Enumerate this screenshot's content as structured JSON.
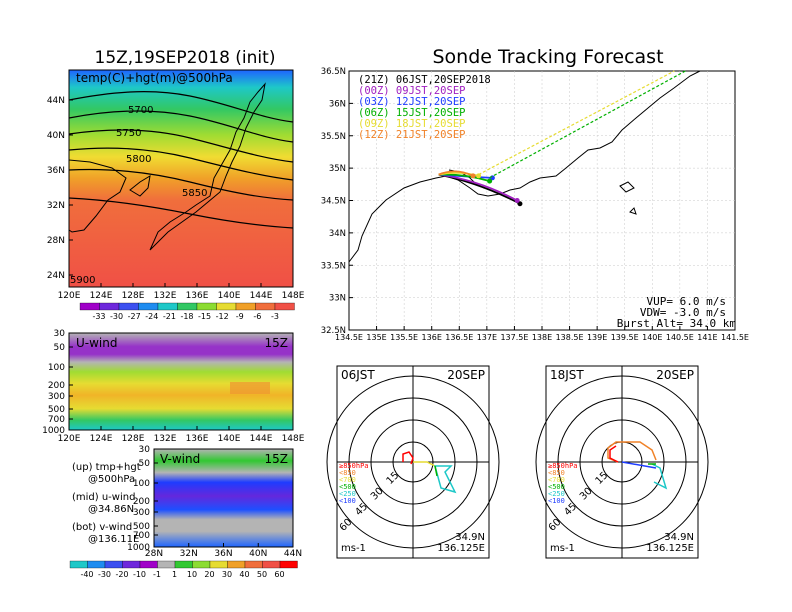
{
  "titles": {
    "left": "15Z,19SEP2018 (init)",
    "right": "Sonde Tracking Forecast"
  },
  "map500": {
    "label": "temp(C)+hgt(m)@500hPa",
    "lat_ticks": [
      "44N",
      "40N",
      "36N",
      "32N",
      "28N",
      "24N"
    ],
    "lon_ticks": [
      "120E",
      "124E",
      "128E",
      "132E",
      "136E",
      "140E",
      "144E",
      "148E"
    ],
    "contour_labels": [
      "5700",
      "5750",
      "5800",
      "5850",
      "5900"
    ],
    "colorbar": [
      "-33",
      "-30",
      "-27",
      "-24",
      "-21",
      "-18",
      "-15",
      "-12",
      "-9",
      "-6",
      "-3"
    ]
  },
  "uwind": {
    "label": "U-wind",
    "time": "15Z",
    "p_ticks": [
      "30",
      "50",
      "100",
      "200",
      "300",
      "500",
      "700",
      "1000"
    ],
    "lon_ticks": [
      "120E",
      "124E",
      "128E",
      "132E",
      "136E",
      "140E",
      "144E",
      "148E"
    ]
  },
  "vwind": {
    "label": "V-wind",
    "time": "15Z",
    "p_ticks": [
      "30",
      "50",
      "100",
      "200",
      "300",
      "500",
      "700",
      "1000"
    ],
    "lat_ticks": [
      "28N",
      "32N",
      "36N",
      "40N",
      "44N"
    ],
    "colorbar": [
      "-40",
      "-30",
      "-20",
      "-10",
      "-1",
      "1",
      "10",
      "20",
      "30",
      "40",
      "50",
      "60"
    ]
  },
  "notes": {
    "up1": "(up) tmp+hgt",
    "up2": "@500hPa",
    "mid1": "(mid) u-wind",
    "mid2": "@34.86N",
    "bot1": "(bot) v-wind",
    "bot2": "@136.11E"
  },
  "track": {
    "legend": [
      {
        "text": "(21Z) 06JST,20SEP2018",
        "color": "#000000"
      },
      {
        "text": "(00Z) 09JST,20SEP",
        "color": "#a020c0"
      },
      {
        "text": "(03Z) 12JST,20SEP",
        "color": "#1e3cff"
      },
      {
        "text": "(06Z) 15JST,20SEP",
        "color": "#00b000"
      },
      {
        "text": "(09Z) 18JST,20SEP",
        "color": "#e6dc32"
      },
      {
        "text": "(12Z) 21JST,20SEP",
        "color": "#f08228"
      }
    ],
    "lat_ticks": [
      "36.5N",
      "36N",
      "35.5N",
      "35N",
      "34.5N",
      "34N",
      "33.5N",
      "33N",
      "32.5N"
    ],
    "lon_ticks": [
      "134.5E",
      "135E",
      "135.5E",
      "136E",
      "136.5E",
      "137E",
      "137.5E",
      "138E",
      "138.5E",
      "139E",
      "139.5E",
      "140E",
      "140.5E",
      "141E",
      "141.5E"
    ],
    "vup": "VUP=  6.0 m/s",
    "vdw": "VDW= -3.0 m/s",
    "burst": "Burst Alt= 34.0 km"
  },
  "hodo1": {
    "time": "06JST",
    "date": "20SEP",
    "rings": [
      "15",
      "30",
      "45",
      "60"
    ],
    "levels": [
      {
        "text": "≥850hPa",
        "color": "#ff0000"
      },
      {
        "text": "<850",
        "color": "#f08228"
      },
      {
        "text": "<700",
        "color": "#e6dc32"
      },
      {
        "text": "<500",
        "color": "#00b000"
      },
      {
        "text": "<250",
        "color": "#1ec8c8"
      },
      {
        "text": "<100",
        "color": "#1e3cff"
      }
    ],
    "lat": "34.9N",
    "lon": "136.125E",
    "unit": "ms-1"
  },
  "hodo2": {
    "time": "18JST",
    "date": "20SEP",
    "rings": [
      "15",
      "30",
      "45",
      "60"
    ],
    "levels": [
      {
        "text": "≥850hPa",
        "color": "#ff0000"
      },
      {
        "text": "<850",
        "color": "#f08228"
      },
      {
        "text": "<700",
        "color": "#e6dc32"
      },
      {
        "text": "<500",
        "color": "#00b000"
      },
      {
        "text": "<250",
        "color": "#1ec8c8"
      },
      {
        "text": "<100",
        "color": "#1e3cff"
      }
    ],
    "lat": "34.9N",
    "lon": "136.125E",
    "unit": "ms-1"
  },
  "chart_data": [
    {
      "type": "heatmap",
      "title": "15Z,19SEP2018 (init)",
      "label": "temp(C)+hgt(m)@500hPa",
      "xlim": [
        120,
        148
      ],
      "ylim": [
        23,
        47
      ],
      "contours_m": [
        5700,
        5750,
        5800,
        5850,
        5900
      ],
      "colorbar_C": [
        -33,
        -30,
        -27,
        -24,
        -21,
        -18,
        -15,
        -12,
        -9,
        -6,
        -3
      ]
    },
    {
      "type": "line",
      "title": "Sonde Tracking Forecast",
      "xlim": [
        134.5,
        141.5
      ],
      "ylim": [
        32.5,
        36.5
      ],
      "launch": [
        136.125,
        34.9
      ],
      "series": [
        {
          "name": "(21Z) 06JST,20SEP2018",
          "landing": [
            137.6,
            34.45
          ]
        },
        {
          "name": "(00Z) 09JST,20SEP",
          "landing": [
            137.55,
            34.5
          ]
        },
        {
          "name": "(03Z) 12JST,20SEP",
          "landing": [
            137.1,
            34.85
          ]
        },
        {
          "name": "(06Z) 15JST,20SEP",
          "landing": [
            137.05,
            34.8
          ]
        },
        {
          "name": "(09Z) 18JST,20SEP",
          "landing": [
            136.85,
            34.88
          ]
        },
        {
          "name": "(12Z) 21JST,20SEP",
          "landing": [
            136.75,
            34.88
          ]
        }
      ]
    },
    {
      "type": "scatter",
      "title": "06JST 20SEP",
      "rings": [
        15,
        30,
        45,
        60
      ],
      "unit": "ms-1"
    },
    {
      "type": "scatter",
      "title": "18JST 20SEP",
      "rings": [
        15,
        30,
        45,
        60
      ],
      "unit": "ms-1"
    }
  ]
}
